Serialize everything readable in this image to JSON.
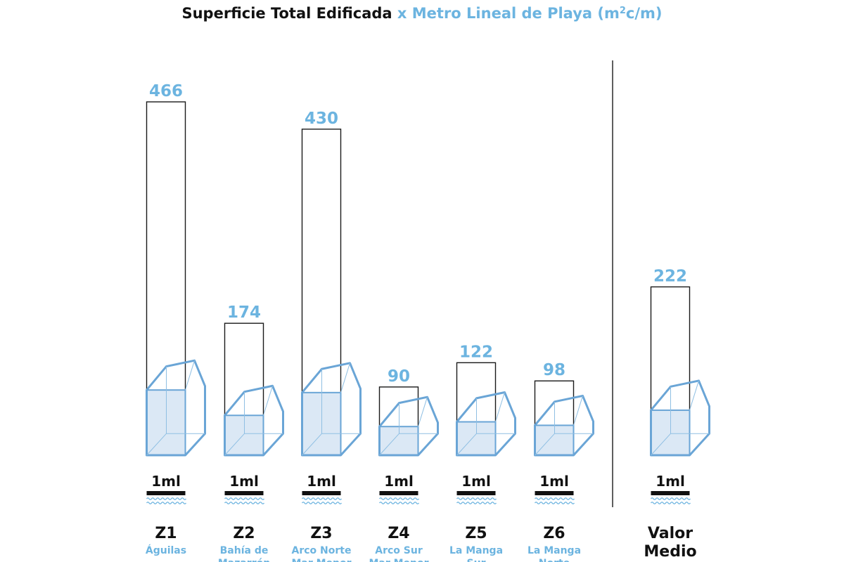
{
  "title": {
    "part1": "Superficie Total Edificada",
    "part2": " x Metro Lineal de Playa (m",
    "sup": "2",
    "part3": "c/m)"
  },
  "colors": {
    "accent": "#6cb4e0",
    "dark": "#111111",
    "fill": "#dbe8f5"
  },
  "chart_data": {
    "type": "bar",
    "title": "Superficie Total Edificada x Metro Lineal de Playa (m²c/m)",
    "categories": [
      "Z1",
      "Z2",
      "Z3",
      "Z4",
      "Z5",
      "Z6",
      "Valor Medio"
    ],
    "zones": [
      {
        "code": "Z1",
        "name_lines": [
          "Águilas"
        ],
        "value": 466,
        "unit_label": "1ml"
      },
      {
        "code": "Z2",
        "name_lines": [
          "Bahía de",
          "Mazarrón"
        ],
        "value": 174,
        "unit_label": "1ml"
      },
      {
        "code": "Z3",
        "name_lines": [
          "Arco Norte",
          "Mar Menor"
        ],
        "value": 430,
        "unit_label": "1ml"
      },
      {
        "code": "Z4",
        "name_lines": [
          "Arco Sur",
          "Mar Menor"
        ],
        "value": 90,
        "unit_label": "1ml"
      },
      {
        "code": "Z5",
        "name_lines": [
          "La Manga",
          "Sur"
        ],
        "value": 122,
        "unit_label": "1ml"
      },
      {
        "code": "Z6",
        "name_lines": [
          "La Manga",
          "Norte"
        ],
        "value": 98,
        "unit_label": "1ml"
      }
    ],
    "average": {
      "code_lines": [
        "Valor",
        "Medio"
      ],
      "value": 222,
      "unit_label": "1ml"
    },
    "values": [
      466,
      174,
      430,
      90,
      122,
      98,
      222
    ],
    "ylim": [
      0,
      466
    ]
  }
}
